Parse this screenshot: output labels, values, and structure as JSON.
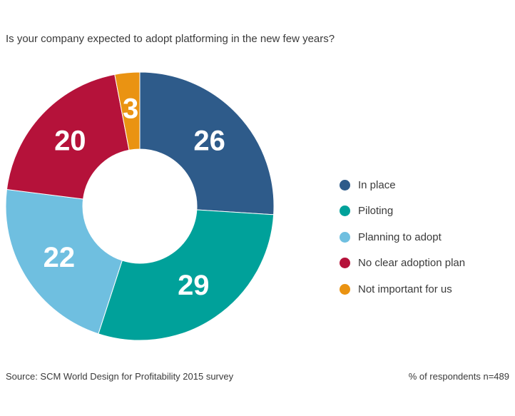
{
  "chart_data": {
    "type": "pie",
    "variant": "donut",
    "title": "Is your company expected to adopt platforming in the new few years?",
    "categories": [
      "In place",
      "Piloting",
      "Planning to adopt",
      "No clear adoption plan",
      "Not important for us"
    ],
    "values": [
      26,
      29,
      22,
      20,
      3
    ],
    "colors": [
      "#2e5b8a",
      "#00a19a",
      "#6fbfe0",
      "#b5123a",
      "#ea9312"
    ],
    "unit": "% of respondents",
    "legend_position": "right"
  },
  "footer": {
    "source": "Source: SCM World Design for Profitability 2015 survey",
    "note": "% of respondents n=489"
  }
}
